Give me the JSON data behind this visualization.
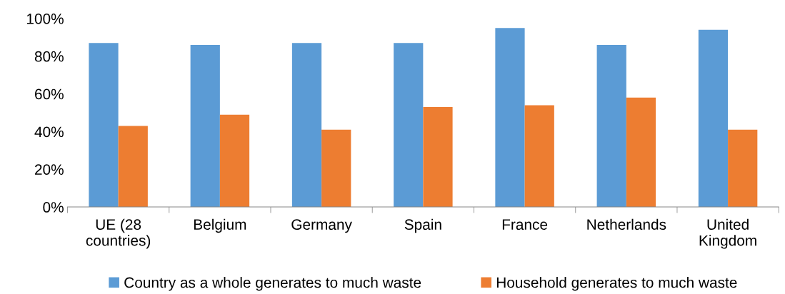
{
  "chart_data": {
    "type": "bar",
    "categories": [
      "UE (28\ncountries)",
      "Belgium",
      "Germany",
      "Spain",
      "France",
      "Netherlands",
      "United\nKingdom"
    ],
    "series": [
      {
        "name": "Country as a whole generates to much waste",
        "color": "#5b9bd5",
        "values": [
          87,
          86,
          87,
          87,
          95,
          86,
          94
        ]
      },
      {
        "name": "Household generates to much waste",
        "color": "#ed7d31",
        "values": [
          43,
          49,
          41,
          53,
          54,
          58,
          41
        ]
      }
    ],
    "ylim": [
      0,
      100
    ],
    "yticks": [
      {
        "value": 0,
        "label": "0%"
      },
      {
        "value": 20,
        "label": "20%"
      },
      {
        "value": 40,
        "label": "40%"
      },
      {
        "value": 60,
        "label": "60%"
      },
      {
        "value": 80,
        "label": "80%"
      },
      {
        "value": 100,
        "label": "100%"
      }
    ],
    "grid": false,
    "legend": "bottom"
  }
}
